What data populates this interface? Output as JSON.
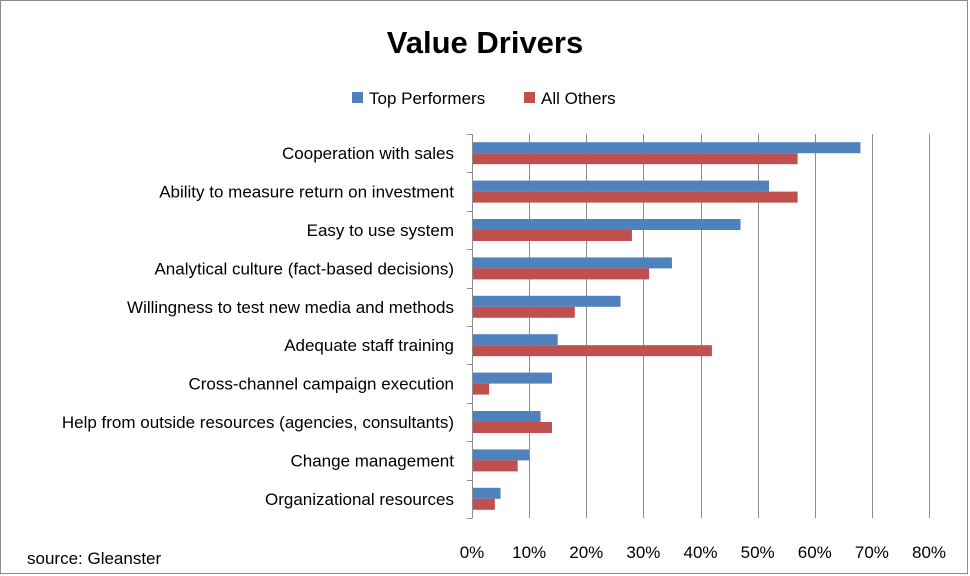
{
  "chart_data": {
    "type": "bar",
    "orientation": "horizontal",
    "title": "Value Drivers",
    "categories": [
      "Cooperation with sales",
      "Ability to measure return on investment",
      "Easy to use system",
      "Analytical culture (fact-based decisions)",
      "Willingness to test new media and methods",
      "Adequate staff training",
      "Cross-channel campaign execution",
      "Help from outside resources (agencies, consultants)",
      "Change management",
      "Organizational resources"
    ],
    "series": [
      {
        "name": "Top Performers",
        "color": "#4F81BD",
        "values": [
          68,
          52,
          47,
          35,
          26,
          15,
          14,
          12,
          10,
          5
        ]
      },
      {
        "name": "All Others",
        "color": "#C0504D",
        "values": [
          57,
          57,
          28,
          31,
          18,
          42,
          3,
          14,
          8,
          4
        ]
      }
    ],
    "xlim": [
      0,
      80
    ],
    "xticks": [
      "0%",
      "10%",
      "20%",
      "30%",
      "40%",
      "50%",
      "60%",
      "70%",
      "80%"
    ],
    "grid": "vertical",
    "legend": "top-center",
    "source": "source: Gleanster"
  }
}
